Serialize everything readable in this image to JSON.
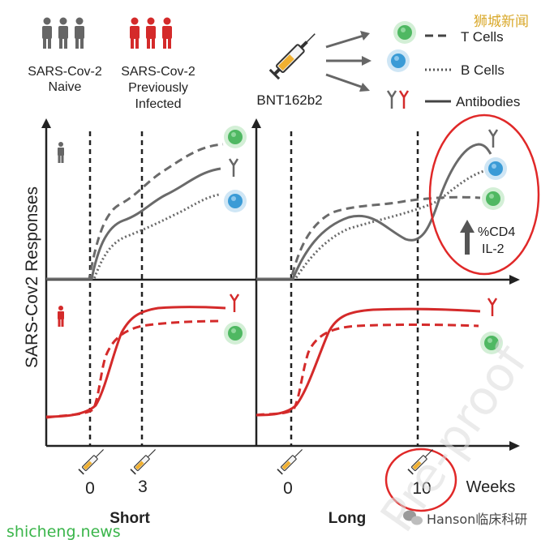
{
  "legend": {
    "naive_label_1": "SARS-Cov-2",
    "naive_label_2": "Naive",
    "infected_label_1": "SARS-Cov-2",
    "infected_label_2": "Previously",
    "infected_label_3": "Infected",
    "vaccine": "BNT162b2",
    "t_cells": "T Cells",
    "b_cells": "B Cells",
    "antibodies": "Antibodies"
  },
  "axis": {
    "y_label": "SARS-Cov2 Responses",
    "tick_0_short": "0",
    "tick_3": "3",
    "tick_0_long": "0",
    "tick_10": "10",
    "unit": "Weeks",
    "short": "Short",
    "long": "Long"
  },
  "annotation": {
    "cd4": "%CD4",
    "il2": "IL-2"
  },
  "watermarks": {
    "top_right": "狮城新闻",
    "bottom_left": "shicheng.news",
    "bottom_right": "Hanson临床科研",
    "diagonal": "Pre-proof"
  },
  "colors": {
    "naive": "#666666",
    "infected": "#d42a2a",
    "t_cell": "#5cbf6b",
    "b_cell": "#4aa3d8",
    "circle": "#e02828"
  }
}
